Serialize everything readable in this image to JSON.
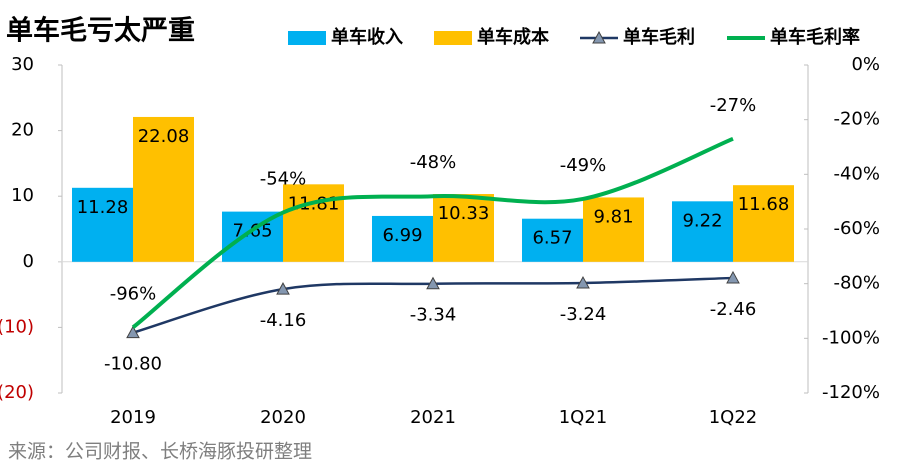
{
  "chart_data": {
    "type": "bar-line",
    "title": "单车毛亏太严重",
    "source": "来源：公司财报、长桥海豚投研整理",
    "categories": [
      "2019",
      "2020",
      "2021",
      "1Q21",
      "1Q22"
    ],
    "series": [
      {
        "name": "单车收入",
        "type": "bar",
        "color": "#00b0f0",
        "values": [
          11.28,
          7.65,
          6.99,
          6.57,
          9.22
        ]
      },
      {
        "name": "单车成本",
        "type": "bar",
        "color": "#ffc000",
        "values": [
          22.08,
          11.81,
          10.33,
          9.81,
          11.68
        ]
      },
      {
        "name": "单车毛利",
        "type": "line",
        "marker": "triangle",
        "color": "#1f3864",
        "values": [
          -10.8,
          -4.16,
          -3.34,
          -3.24,
          -2.46
        ],
        "value_labels": [
          "-10.80",
          "-4.16",
          "-3.34",
          "-3.24",
          "-2.46"
        ]
      },
      {
        "name": "单车毛利率",
        "type": "line",
        "axis": "y2",
        "color": "#00b050",
        "values": [
          -96,
          -54,
          -48,
          -49,
          -27
        ],
        "value_labels": [
          "-96%",
          "-54%",
          "-48%",
          "-49%",
          "-27%"
        ]
      }
    ],
    "ylim": [
      -20,
      30
    ],
    "yticks": [
      {
        "value": -20,
        "label": "(20)"
      },
      {
        "value": -10,
        "label": "(10)"
      },
      0,
      10,
      20,
      30
    ],
    "negative_tick_color": "#c00000",
    "y2lim": [
      -120,
      0
    ],
    "y2ticks": [
      {
        "value": -120,
        "label": "-120%"
      },
      {
        "value": -100,
        "label": "-100%"
      },
      {
        "value": -80,
        "label": "-80%"
      },
      {
        "value": -60,
        "label": "-60%"
      },
      {
        "value": -40,
        "label": "-40%"
      },
      {
        "value": -20,
        "label": "-20%"
      },
      {
        "value": 0,
        "label": "0%"
      }
    ],
    "legend": "top"
  }
}
